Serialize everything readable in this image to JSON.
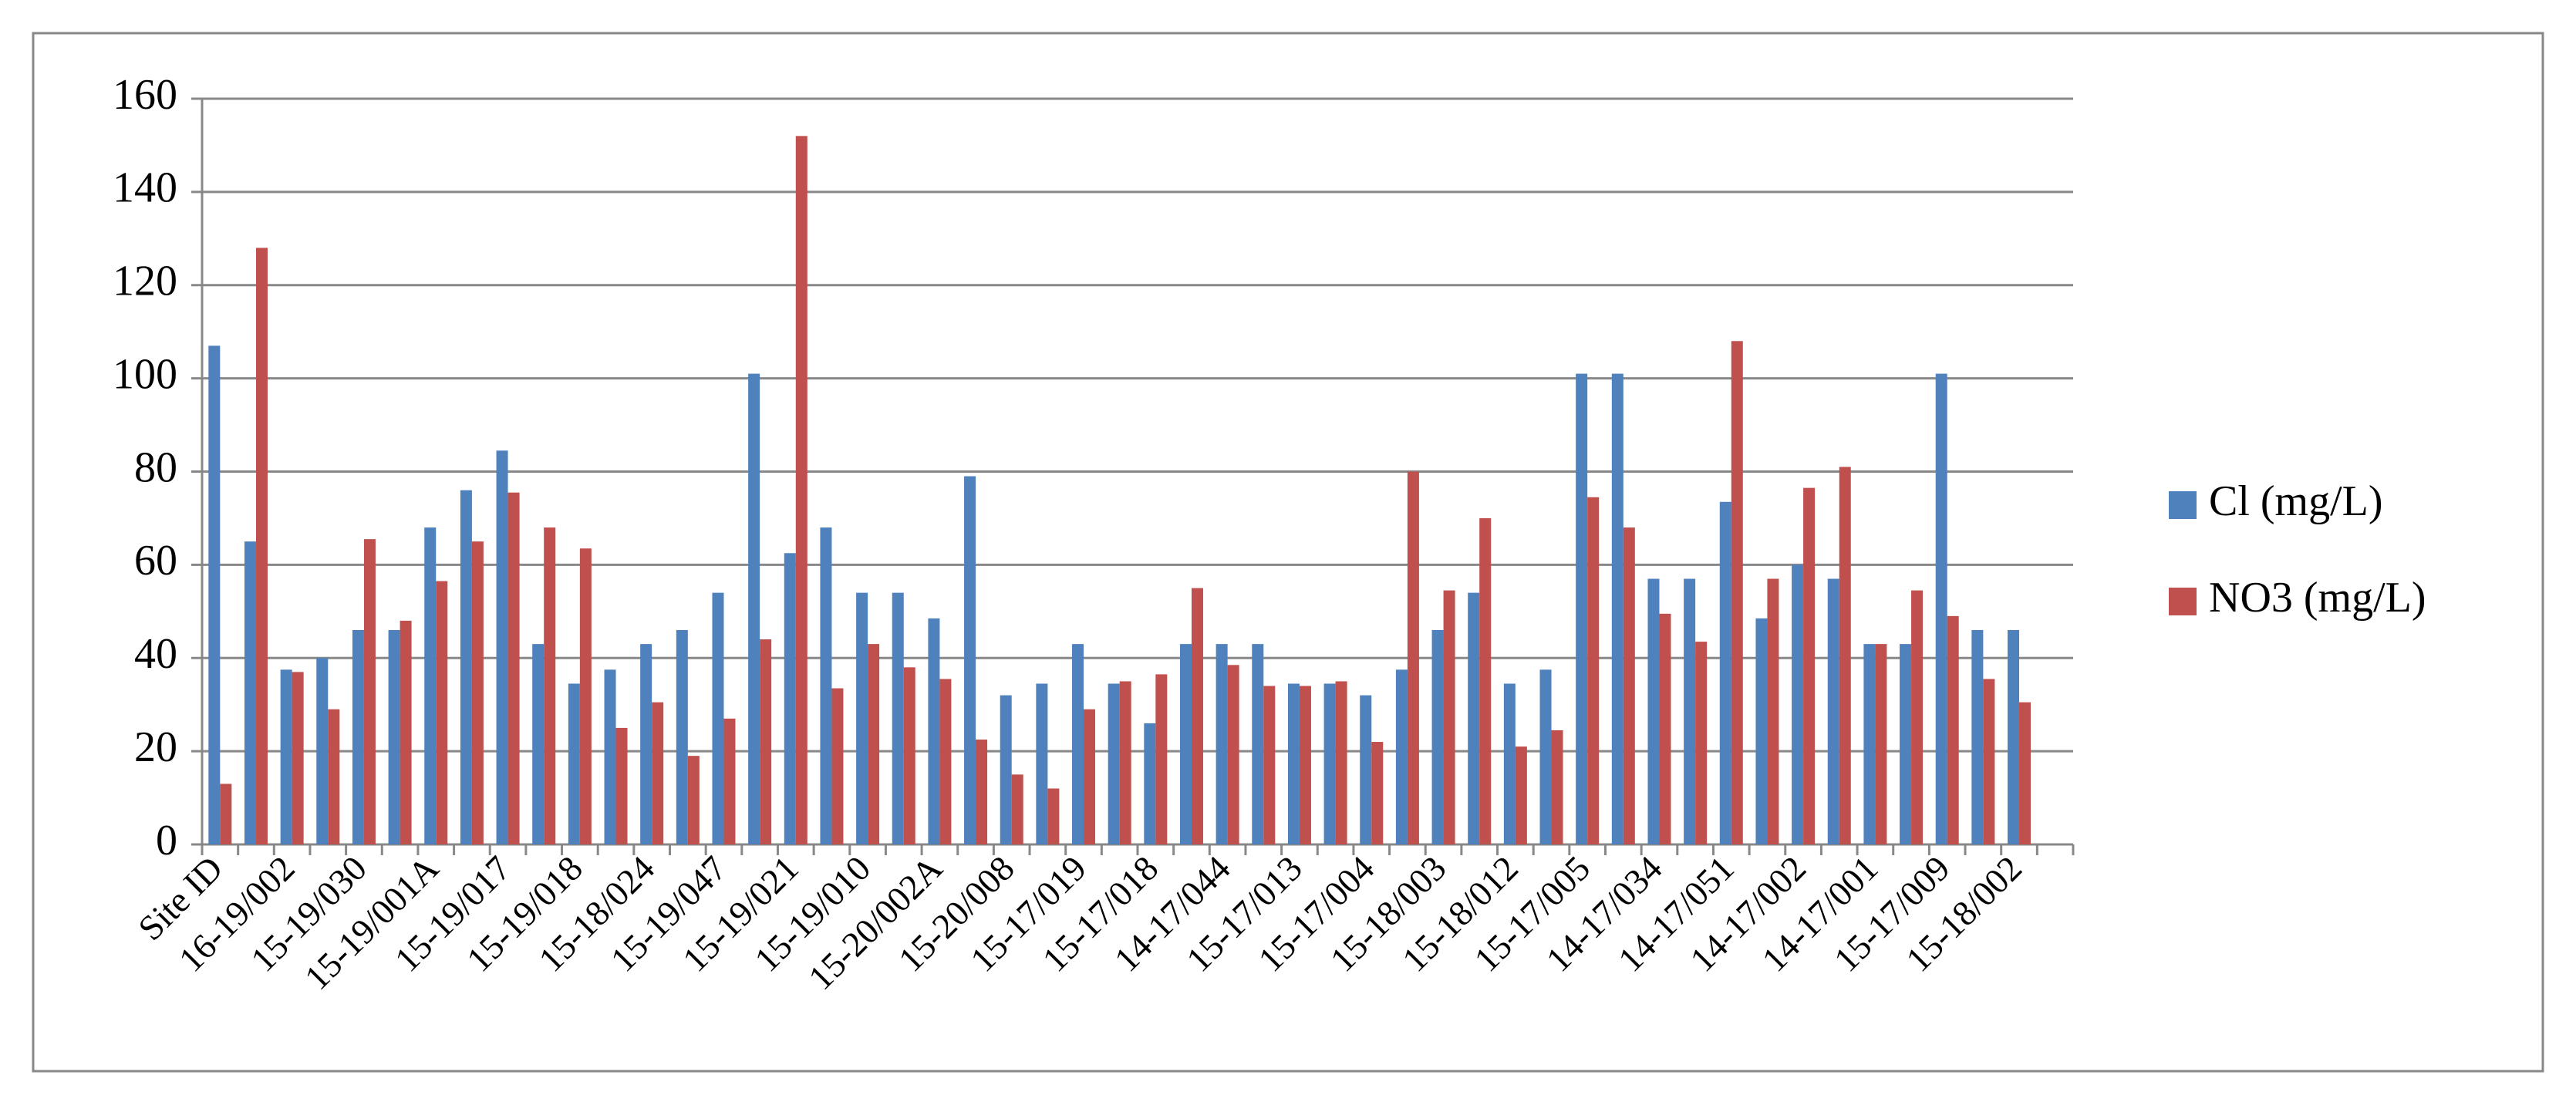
{
  "chart_data": {
    "type": "bar",
    "categories": [
      "Site ID",
      null,
      "16-19/002",
      null,
      "15-19/030",
      null,
      "15-19/001A",
      null,
      "15-19/017",
      null,
      "15-19/018",
      null,
      "15-18/024",
      null,
      "15-19/047",
      null,
      "15-19/021",
      null,
      "15-19/010",
      null,
      "15-20/002A",
      null,
      "15-20/008",
      null,
      "15-17/019",
      null,
      "15-17/018",
      null,
      "14-17/044",
      null,
      "15-17/013",
      null,
      "15-17/004",
      null,
      "15-18/003",
      null,
      "15-18/012",
      null,
      "15-17/005",
      null,
      "14-17/034",
      null,
      "14-17/051",
      null,
      "14-17/002",
      null,
      "14-17/001",
      null,
      "15-17/009",
      null,
      "15-18/002",
      null
    ],
    "series": [
      {
        "name": "Cl (mg/L)",
        "color": "#4f81bd",
        "values": [
          107,
          65,
          37.5,
          40,
          46,
          46,
          68,
          76,
          84.5,
          43,
          34.5,
          37.5,
          43,
          46,
          54,
          101,
          62.5,
          68,
          54,
          54,
          48.5,
          79,
          32,
          34.5,
          43,
          34.5,
          26,
          43,
          43,
          43,
          34.5,
          34.5,
          32,
          37.5,
          46,
          54,
          34.5,
          37.5,
          101,
          101,
          57,
          57,
          73.5,
          48.5,
          60,
          57,
          43,
          43,
          101,
          46,
          46,
          null
        ]
      },
      {
        "name": "NO3 (mg/L)",
        "color": "#c0504d",
        "values": [
          13,
          128,
          37,
          29,
          65.5,
          48,
          56.5,
          65,
          75.5,
          68,
          63.5,
          25,
          30.5,
          19,
          27,
          44,
          152,
          33.5,
          43,
          38,
          35.5,
          22.5,
          15,
          12,
          29,
          35,
          36.5,
          55,
          38.5,
          34,
          34,
          35,
          22,
          80,
          54.5,
          70,
          21,
          24.5,
          74.5,
          68,
          49.5,
          43.5,
          108,
          57,
          76.5,
          81,
          43,
          54.5,
          49,
          35.5,
          30.5,
          null
        ]
      }
    ],
    "ylim": [
      0,
      160
    ],
    "yticks": [
      0,
      20,
      40,
      60,
      80,
      100,
      120,
      140,
      160
    ],
    "grid": true,
    "legend": "right"
  }
}
